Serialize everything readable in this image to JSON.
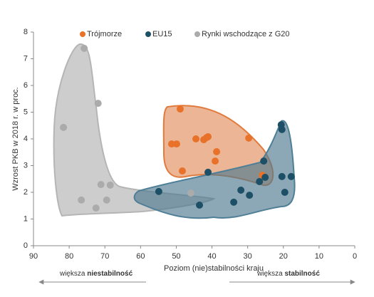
{
  "chart_data": {
    "type": "scatter",
    "y_label": "Wzrost PKB w 2018 r. w proc.",
    "x_label": "Poziom (nie)stabilności kraju",
    "xlim": [
      90,
      0
    ],
    "xticks": [
      90,
      80,
      70,
      60,
      50,
      40,
      30,
      20,
      10,
      0
    ],
    "ylim": [
      0,
      8
    ],
    "yticks": [
      0,
      1,
      2,
      3,
      4,
      5,
      6,
      7,
      8
    ],
    "annotations": [
      {
        "plain": "większa ",
        "bold": "niestabilność"
      },
      {
        "plain": "większa ",
        "bold": "stabilność"
      }
    ],
    "series": [
      {
        "name": "Trójmorze",
        "color": "#e8722a",
        "x": [
          48.9,
          51.3,
          49.9,
          44.5,
          42.3,
          41.5,
          41.1,
          29.7,
          38.7,
          39.1,
          48.3,
          25.9
        ],
        "values": [
          5.12,
          3.81,
          3.81,
          4.0,
          3.97,
          4.05,
          4.08,
          4.03,
          3.52,
          3.17,
          2.8,
          2.64
        ]
      },
      {
        "name": "EU15",
        "color": "#1d4f66",
        "x": [
          54.9,
          43.5,
          41.1,
          33.9,
          31.9,
          29.5,
          26.7,
          25.5,
          25.1,
          20.6,
          20.4,
          20.4,
          19.6,
          17.8
        ],
        "values": [
          2.03,
          1.52,
          2.75,
          1.63,
          2.08,
          1.89,
          2.4,
          3.17,
          2.56,
          4.53,
          4.35,
          2.59,
          2.0,
          2.59
        ]
      },
      {
        "name": "Rynki wschodzące z G20",
        "color": "#ababab",
        "x": [
          75.8,
          71.9,
          81.6,
          76.6,
          72.5,
          71.1,
          69.5,
          68.5,
          45.9
        ],
        "values": [
          7.39,
          5.33,
          4.43,
          1.71,
          1.41,
          2.29,
          1.71,
          2.27,
          1.97
        ]
      }
    ]
  }
}
